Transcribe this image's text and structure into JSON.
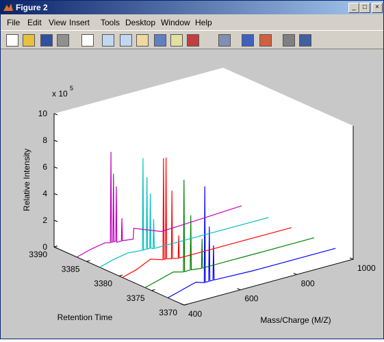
{
  "window": {
    "title": "Figure 2",
    "menu": [
      "File",
      "Edit",
      "View",
      "Insert",
      "Tools",
      "Desktop",
      "Window",
      "Help"
    ]
  },
  "chart_data": {
    "type": "line3d",
    "xlabel": "Mass/Charge (M/Z)",
    "ylabel": "Retention Time",
    "zlabel": "Relative Intensity",
    "z_multiplier": "x 10",
    "z_exponent": "5",
    "xlim": [
      400,
      1000
    ],
    "xticks": [
      400,
      600,
      800,
      1000
    ],
    "ylim": [
      3370,
      3390
    ],
    "yticks": [
      3370,
      3375,
      3380,
      3385,
      3390
    ],
    "zlim": [
      0,
      10
    ],
    "zticks": [
      0,
      2,
      4,
      6,
      8,
      10
    ],
    "series": [
      {
        "color": "#0000ff",
        "retention_time": 3372.5,
        "x": [
          400,
          450,
          500,
          529,
          531,
          533,
          545,
          547,
          549,
          560,
          562,
          564,
          700,
          800,
          900,
          995
        ],
        "values": [
          0,
          0.3,
          0.6,
          0.4,
          7.6,
          0.4,
          0.4,
          4.5,
          0.4,
          0.4,
          3,
          0.4,
          0.3,
          0.3,
          0.3,
          0.3
        ]
      },
      {
        "color": "#008000",
        "retention_time": 3376,
        "x": [
          400,
          450,
          500,
          536,
          538,
          540,
          560,
          562,
          564,
          600,
          602,
          604,
          700,
          800,
          900,
          1000
        ],
        "values": [
          0,
          0.3,
          0.6,
          0.4,
          7.3,
          0.4,
          0.4,
          4.5,
          0.4,
          0.3,
          2.5,
          0.3,
          0.3,
          0.3,
          0.3,
          0.3
        ]
      },
      {
        "color": "#ff0000",
        "retention_time": 3379.5,
        "x": [
          400,
          450,
          500,
          544,
          546,
          548,
          553,
          555,
          557,
          574,
          576,
          578,
          598,
          600,
          602,
          700,
          800,
          900,
          1000
        ],
        "values": [
          0,
          0.3,
          0.8,
          0.5,
          8.1,
          0.5,
          0.5,
          8.1,
          0.5,
          0.4,
          5.5,
          0.4,
          0.3,
          2,
          0.3,
          0.3,
          0.3,
          0.3,
          0.3
        ]
      },
      {
        "color": "#00bfbf",
        "retention_time": 3383,
        "x": [
          400,
          450,
          500,
          552,
          554,
          556,
          566,
          568,
          570,
          578,
          580,
          582,
          590,
          592,
          594,
          700,
          800,
          900,
          1000
        ],
        "values": [
          0,
          0.3,
          0.5,
          0.4,
          7.3,
          0.4,
          0.4,
          5.8,
          0.4,
          0.4,
          4.5,
          0.4,
          0.3,
          2.5,
          0.3,
          0.3,
          0.3,
          0.3,
          0.3
        ]
      },
      {
        "color": "#bf00bf",
        "retention_time": 3386.5,
        "x": [
          400,
          450,
          500,
          519,
          521,
          523,
          528,
          530,
          532,
          538,
          540,
          542,
          558,
          560,
          562,
          600,
          602,
          700,
          800,
          900,
          985
        ],
        "values": [
          0,
          0.3,
          0.5,
          0.4,
          7.2,
          0.4,
          0.4,
          5.5,
          0.4,
          0.4,
          4.5,
          0.3,
          0.3,
          2,
          0.3,
          0.2,
          1,
          0.2,
          0.3,
          0.4,
          0.5
        ]
      }
    ]
  }
}
